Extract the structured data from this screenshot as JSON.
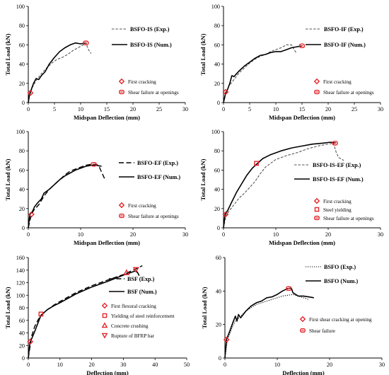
{
  "figure": {
    "description": ""
  },
  "colors": {
    "marker": "#e3262b",
    "line": "#000000",
    "exp_dashed": "#555555"
  },
  "chart_data": [
    {
      "id": "bsfo-is",
      "type": "line",
      "xlabel": "Midspan Deflection (mm)",
      "ylabel": "Total Load (kN)",
      "xlim": [
        0,
        30
      ],
      "ylim": [
        0,
        100
      ],
      "xticks": [
        0,
        5,
        10,
        15,
        20,
        25,
        30
      ],
      "yticks": [
        0,
        20,
        40,
        60,
        80,
        100
      ],
      "grid": false,
      "legend_position": "top-right",
      "series": [
        {
          "name": "BSFO-IS (Exp.)",
          "style": "dashed-gray",
          "x": [
            0,
            0.3,
            0.8,
            1.5,
            2.5,
            3.5,
            4.5,
            5.5,
            6.5,
            7.5,
            8.5,
            9.5,
            10.5,
            11,
            11.5,
            12
          ],
          "y": [
            0,
            8,
            16,
            23,
            30,
            36,
            41,
            45,
            47,
            50,
            54,
            57,
            60,
            62,
            55,
            51
          ]
        },
        {
          "name": "BSFO-IS (Num.)",
          "style": "solid",
          "x": [
            0,
            0.2,
            0.6,
            1,
            1.5,
            2,
            2.5,
            3.2,
            4,
            5,
            6,
            7,
            8,
            9,
            10,
            11
          ],
          "y": [
            0,
            8,
            14,
            20,
            25,
            24,
            28,
            32,
            40,
            47,
            53,
            57,
            60,
            62,
            61,
            62
          ]
        }
      ],
      "events": [
        {
          "label": "First cracking",
          "marker": "diamond",
          "x": 0.4,
          "y": 10
        },
        {
          "label": "Shear failure at openings",
          "marker": "rounded",
          "x": 11,
          "y": 62
        }
      ]
    },
    {
      "id": "bsfo-if",
      "type": "line",
      "xlabel": "Midspan Deflection (mm)",
      "ylabel": "Total Load (kN)",
      "xlim": [
        0,
        30
      ],
      "ylim": [
        0,
        100
      ],
      "xticks": [
        0,
        5,
        10,
        15,
        20,
        25,
        30
      ],
      "yticks": [
        0,
        20,
        40,
        60,
        80,
        100
      ],
      "grid": false,
      "legend_position": "top-right",
      "series": [
        {
          "name": "BSFO-IF (Exp.)",
          "style": "dashed-gray",
          "x": [
            0,
            0.5,
            1,
            2,
            3,
            4,
            5,
            6,
            7,
            8,
            9,
            10,
            11,
            12,
            13,
            13.5,
            14
          ],
          "y": [
            0,
            10,
            17,
            24,
            31,
            36,
            41,
            45,
            48,
            50,
            53,
            55,
            57,
            60,
            60,
            55,
            51
          ]
        },
        {
          "name": "BSFO-IF (Num.)",
          "style": "solid",
          "x": [
            0,
            0.4,
            0.8,
            1.2,
            1.6,
            2,
            2.5,
            3,
            4,
            5,
            6,
            7,
            8,
            9,
            10,
            11,
            12,
            13,
            14,
            15
          ],
          "y": [
            0,
            10,
            14,
            20,
            28,
            27,
            30,
            33,
            38,
            42,
            46,
            49,
            50,
            52,
            53,
            53,
            55,
            57,
            58,
            59
          ]
        }
      ],
      "events": [
        {
          "label": "First cracking",
          "marker": "diamond",
          "x": 0.4,
          "y": 11
        },
        {
          "label": "Shear failure at openings",
          "marker": "rounded",
          "x": 15,
          "y": 59
        }
      ]
    },
    {
      "id": "bsfo-ef",
      "type": "line",
      "xlabel": "Midspan Deflection (mm)",
      "ylabel": "Total Load (kN)",
      "xlim": [
        0,
        30
      ],
      "ylim": [
        0,
        100
      ],
      "xticks": [
        0,
        10,
        20,
        30
      ],
      "yticks": [
        0,
        20,
        40,
        60,
        80,
        100
      ],
      "grid": false,
      "legend_position": "right",
      "series": [
        {
          "name": "BSFO-EF (Exp.)",
          "style": "dashed",
          "x": [
            0,
            0.5,
            1,
            2,
            3,
            4,
            5,
            6,
            7,
            8,
            9,
            10,
            11,
            12,
            13,
            13.5,
            14,
            14.5,
            15
          ],
          "y": [
            0,
            12,
            18,
            24,
            33,
            40,
            45,
            50,
            55,
            59,
            61,
            63,
            65,
            66,
            66,
            64,
            58,
            52,
            50
          ]
        },
        {
          "name": "BSFO-EF (Num.)",
          "style": "solid",
          "x": [
            0,
            0.3,
            0.8,
            1.2,
            1.8,
            2.5,
            3,
            4,
            5,
            6,
            7,
            8,
            9,
            10,
            11,
            12,
            13,
            14
          ],
          "y": [
            0,
            14,
            17,
            22,
            26,
            30,
            36,
            40,
            45,
            50,
            54,
            57,
            60,
            62,
            64,
            65,
            65,
            64
          ]
        }
      ],
      "events": [
        {
          "label": "First cracking",
          "marker": "diamond",
          "x": 0.6,
          "y": 14
        },
        {
          "label": "Shear failure at openings",
          "marker": "rounded",
          "x": 12.5,
          "y": 66
        }
      ]
    },
    {
      "id": "bsfo-is-ef",
      "type": "line",
      "xlabel": "Midspan Deflection (mm)",
      "ylabel": "Total Load (kN)",
      "xlim": [
        0,
        30
      ],
      "ylim": [
        0,
        100
      ],
      "xticks": [
        0,
        10,
        20,
        30
      ],
      "yticks": [
        0,
        20,
        40,
        60,
        80,
        100
      ],
      "grid": false,
      "legend_position": "bottom-right",
      "series": [
        {
          "name": "BSFO-IS-EF (Exp.)",
          "style": "dashed-gray",
          "x": [
            0,
            0.5,
            1,
            2,
            3,
            4,
            5,
            6,
            7,
            8,
            9,
            10,
            12,
            14,
            16,
            18,
            20,
            21,
            21.5,
            22,
            23
          ],
          "y": [
            0,
            13,
            17,
            24,
            31,
            36,
            42,
            48,
            56,
            63,
            67,
            71,
            75,
            78,
            82,
            85,
            87,
            88,
            79,
            73,
            70
          ]
        },
        {
          "name": "BSFO-IS-EF (Num.)",
          "style": "solid",
          "x": [
            0,
            0.3,
            0.8,
            1.5,
            2.5,
            3.5,
            4.5,
            5.5,
            6.5,
            7.5,
            9,
            11,
            13,
            15,
            17,
            19,
            20.5,
            21.5
          ],
          "y": [
            0,
            14,
            18,
            26,
            37,
            46,
            55,
            62,
            67,
            72,
            76,
            80,
            83,
            85,
            87,
            88,
            89,
            88
          ]
        }
      ],
      "events": [
        {
          "label": "First cracking",
          "marker": "diamond",
          "x": 0.4,
          "y": 14
        },
        {
          "label": "Steel yielding",
          "marker": "square",
          "x": 6.3,
          "y": 67
        },
        {
          "label": "Shear failure at openings",
          "marker": "rounded",
          "x": 21.3,
          "y": 88
        }
      ]
    },
    {
      "id": "bsf",
      "type": "line",
      "xlabel": "Deflection (mm)",
      "ylabel": "Total Load (kN)",
      "xlim": [
        0,
        50
      ],
      "ylim": [
        0,
        160
      ],
      "xticks": [
        0,
        10,
        20,
        30,
        40,
        50
      ],
      "yticks": [
        0,
        20,
        40,
        60,
        80,
        100,
        120,
        140,
        160
      ],
      "grid": false,
      "legend_position": "right",
      "series": [
        {
          "name": "BSF (Exp.)",
          "style": "dashed",
          "x": [
            0,
            1,
            2,
            3,
            4,
            6,
            8,
            10,
            15,
            20,
            25,
            30,
            34,
            36
          ],
          "y": [
            0,
            34,
            50,
            60,
            68,
            77,
            84,
            90,
            104,
            115,
            124,
            133,
            142,
            147
          ]
        },
        {
          "name": "BSF (Num.)",
          "style": "solid",
          "x": [
            0,
            0.5,
            1,
            2,
            3,
            4,
            6,
            8,
            10,
            15,
            20,
            25,
            30,
            34,
            34.5,
            35
          ],
          "y": [
            0,
            24,
            30,
            42,
            55,
            68,
            77,
            83,
            88,
            102,
            113,
            122,
            132,
            139,
            136,
            131
          ]
        }
      ],
      "events": [
        {
          "label": "First flexural cracking",
          "marker": "diamond",
          "x": 0.6,
          "y": 26
        },
        {
          "label": "Yielding of steel reinforcement",
          "marker": "square",
          "x": 4,
          "y": 70
        },
        {
          "label": "Concrete crushing",
          "marker": "triangle-up",
          "x": 31,
          "y": 136
        },
        {
          "label": "Rupture of BFRP bar",
          "marker": "triangle-down",
          "x": 34,
          "y": 141
        }
      ]
    },
    {
      "id": "bsfo",
      "type": "line",
      "xlabel": "Deflection (mm)",
      "ylabel": "Total Load (kN)",
      "xlim": [
        0,
        30
      ],
      "ylim": [
        0,
        60
      ],
      "xticks": [
        0,
        10,
        20,
        30
      ],
      "yticks": [
        0,
        20,
        40,
        60
      ],
      "grid": false,
      "legend_position": "top-right",
      "series": [
        {
          "name": "BSFO (Exp.)",
          "style": "dotted",
          "x": [
            0,
            0.5,
            1,
            1.5,
            2,
            3,
            4,
            5,
            6,
            7,
            8,
            9,
            10,
            11,
            12,
            13,
            14,
            15,
            16
          ],
          "y": [
            0,
            11,
            15,
            19,
            22,
            25,
            28,
            30,
            32,
            33,
            34,
            35,
            36,
            37,
            37.5,
            38,
            37,
            36,
            35
          ]
        },
        {
          "name": "BSFO (Num.)",
          "style": "solid",
          "x": [
            0,
            0.3,
            0.8,
            1.5,
            2,
            2.3,
            2.6,
            3,
            4,
            5,
            6,
            7,
            8,
            9,
            10,
            11,
            12,
            12.7,
            13,
            14,
            15,
            16,
            17
          ],
          "y": [
            0,
            11,
            15,
            21,
            25,
            22,
            26,
            24,
            28,
            31,
            33,
            34,
            36,
            36.5,
            38,
            40,
            41.5,
            41.7,
            39,
            37,
            37,
            36.5,
            36
          ]
        }
      ],
      "events": [
        {
          "label": "First shear cracking at opening",
          "marker": "diamond",
          "x": 0.3,
          "y": 11
        },
        {
          "label": "Shear failure",
          "marker": "rounded",
          "x": 12.2,
          "y": 41.5
        }
      ]
    }
  ]
}
